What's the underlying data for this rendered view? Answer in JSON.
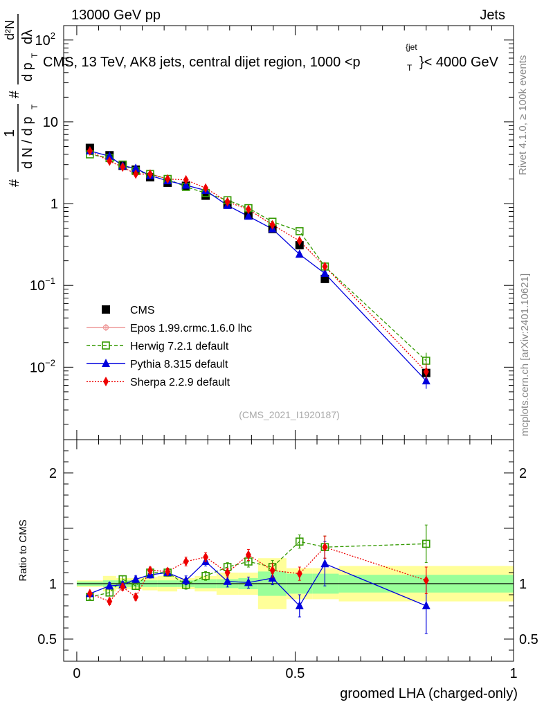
{
  "header": {
    "left": "13000 GeV pp",
    "right": "Jets"
  },
  "side_text": {
    "rivet": "Rivet 4.1.0, ≥ 100k events",
    "mcplots": "mcplots.cern.ch [arXiv:2401.10621]"
  },
  "chart_data": [
    {
      "id": "main",
      "type": "scatter",
      "title": "CMS, 13 TeV, AK8 jets, central dijet region, 1000 < p_T^{jet} < 4000 GeV",
      "title_parts": {
        "pre": "CMS, 13 TeV, AK8 jets, central dijet region, 1000 <p",
        "sub": "T",
        "sup": "{jet",
        "post": "}< 4000 GeV"
      },
      "ylabel_parts": {
        "hash1": "#",
        "one": "1",
        "denA": "d N / d p",
        "denA_sub": "T",
        "hash2": "#",
        "numB": "d²N",
        "denB": "d p",
        "denB_sub": "T",
        "denB2": "dλ"
      },
      "yscale": "log",
      "ylim": [
        0.0013,
        150
      ],
      "xlim": [
        -0.03,
        1.0
      ],
      "yticks": [
        {
          "value": 0.01,
          "base": "10",
          "exp": "−2"
        },
        {
          "value": 0.1,
          "base": "10",
          "exp": "−1"
        },
        {
          "value": 1,
          "base": "1",
          "exp": ""
        },
        {
          "value": 10,
          "base": "10",
          "exp": ""
        },
        {
          "value": 100,
          "base": "10",
          "exp": "2"
        }
      ],
      "watermark": "(CMS_2021_I1920187)",
      "x": [
        0.03,
        0.075,
        0.105,
        0.135,
        0.168,
        0.208,
        0.25,
        0.295,
        0.345,
        0.393,
        0.448,
        0.51,
        0.568,
        0.8
      ],
      "series": [
        {
          "name": "CMS",
          "marker": "square",
          "color": "#000000",
          "values": [
            4.8,
            3.9,
            2.9,
            2.6,
            2.1,
            1.8,
            1.65,
            1.25,
            0.97,
            0.72,
            0.49,
            0.31,
            0.12,
            0.0085
          ]
        },
        {
          "name": "Epos 1.99.crmc.1.6.0 lhc",
          "marker": "cross",
          "color": "#ee9999",
          "line": "solid",
          "values": []
        },
        {
          "name": "Herwig 7.2.1 default",
          "marker": "open-square",
          "color": "#339900",
          "line": "dashed",
          "values": [
            4.0,
            3.6,
            3.0,
            2.5,
            2.3,
            2.0,
            1.6,
            1.35,
            1.1,
            0.88,
            0.6,
            0.46,
            0.17,
            0.012
          ]
        },
        {
          "name": "Pythia 8.315 default",
          "marker": "triangle",
          "color": "#0000dd",
          "line": "solid",
          "values": [
            4.4,
            3.8,
            2.9,
            2.7,
            2.2,
            1.9,
            1.68,
            1.45,
            0.95,
            0.7,
            0.49,
            0.24,
            0.14,
            0.0068
          ]
        },
        {
          "name": "Sherpa 2.2.9 default",
          "marker": "diamond",
          "color": "#ee0000",
          "line": "dotted",
          "values": [
            4.4,
            3.3,
            2.8,
            2.3,
            2.3,
            2.0,
            1.95,
            1.55,
            1.05,
            0.85,
            0.55,
            0.35,
            0.17,
            0.0088
          ]
        }
      ]
    },
    {
      "id": "ratio",
      "type": "scatter",
      "ylabel": "Ratio to CMS",
      "yscale": "linear",
      "ylim": [
        0.3,
        2.3
      ],
      "xlim": [
        -0.03,
        1.0
      ],
      "xlabel": "groomed LHA (charged-only)",
      "yticks": [
        {
          "value": 0.5,
          "label": "0.5"
        },
        {
          "value": 1,
          "label": "1"
        },
        {
          "value": 2,
          "label": "2"
        }
      ],
      "xticks": [
        {
          "value": 0,
          "label": "0"
        },
        {
          "value": 0.5,
          "label": "0.5"
        },
        {
          "value": 1,
          "label": "1"
        }
      ],
      "bands": [
        {
          "x0": 0.0,
          "x1": 0.06,
          "stat_lo": 0.98,
          "stat_hi": 1.02,
          "tot_lo": 0.97,
          "tot_hi": 1.03
        },
        {
          "x0": 0.06,
          "x1": 0.09,
          "stat_lo": 0.97,
          "stat_hi": 1.03,
          "tot_lo": 0.93,
          "tot_hi": 1.07
        },
        {
          "x0": 0.09,
          "x1": 0.12,
          "stat_lo": 0.97,
          "stat_hi": 1.03,
          "tot_lo": 0.95,
          "tot_hi": 1.05
        },
        {
          "x0": 0.12,
          "x1": 0.15,
          "stat_lo": 0.97,
          "stat_hi": 1.03,
          "tot_lo": 0.95,
          "tot_hi": 1.05
        },
        {
          "x0": 0.15,
          "x1": 0.185,
          "stat_lo": 0.97,
          "stat_hi": 1.03,
          "tot_lo": 0.94,
          "tot_hi": 1.06
        },
        {
          "x0": 0.185,
          "x1": 0.23,
          "stat_lo": 0.97,
          "stat_hi": 1.03,
          "tot_lo": 0.93,
          "tot_hi": 1.07
        },
        {
          "x0": 0.23,
          "x1": 0.27,
          "stat_lo": 0.97,
          "stat_hi": 1.03,
          "tot_lo": 0.95,
          "tot_hi": 1.05
        },
        {
          "x0": 0.27,
          "x1": 0.32,
          "stat_lo": 0.96,
          "stat_hi": 1.04,
          "tot_lo": 0.93,
          "tot_hi": 1.07
        },
        {
          "x0": 0.32,
          "x1": 0.37,
          "stat_lo": 0.96,
          "stat_hi": 1.04,
          "tot_lo": 0.9,
          "tot_hi": 1.1
        },
        {
          "x0": 0.37,
          "x1": 0.415,
          "stat_lo": 0.95,
          "stat_hi": 1.05,
          "tot_lo": 0.9,
          "tot_hi": 1.1
        },
        {
          "x0": 0.415,
          "x1": 0.48,
          "stat_lo": 0.89,
          "stat_hi": 1.11,
          "tot_lo": 0.77,
          "tot_hi": 1.23
        },
        {
          "x0": 0.48,
          "x1": 0.54,
          "stat_lo": 0.91,
          "stat_hi": 1.09,
          "tot_lo": 0.86,
          "tot_hi": 1.14
        },
        {
          "x0": 0.54,
          "x1": 0.6,
          "stat_lo": 0.91,
          "stat_hi": 1.09,
          "tot_lo": 0.86,
          "tot_hi": 1.14
        },
        {
          "x0": 0.6,
          "x1": 1.0,
          "stat_lo": 0.92,
          "stat_hi": 1.08,
          "tot_lo": 0.84,
          "tot_hi": 1.16
        }
      ],
      "series": [
        {
          "name": "Herwig 7.2.1 default",
          "marker": "open-square",
          "color": "#339900",
          "line": "dashed",
          "values": [
            0.88,
            0.92,
            1.04,
            0.98,
            1.1,
            1.1,
            0.99,
            1.07,
            1.15,
            1.2,
            1.15,
            1.38,
            1.33,
            1.36
          ],
          "errors": [
            0.02,
            0.03,
            0.03,
            0.03,
            0.03,
            0.03,
            0.04,
            0.04,
            0.04,
            0.05,
            0.06,
            0.06,
            0.1,
            0.17
          ]
        },
        {
          "name": "Pythia 8.315 default",
          "marker": "triangle",
          "color": "#0000dd",
          "line": "solid",
          "values": [
            0.91,
            0.98,
            0.99,
            1.04,
            1.08,
            1.1,
            1.03,
            1.2,
            1.02,
            1.01,
            1.05,
            0.8,
            1.18,
            0.8
          ],
          "errors": [
            0.02,
            0.03,
            0.03,
            0.03,
            0.03,
            0.03,
            0.04,
            0.04,
            0.05,
            0.05,
            0.06,
            0.1,
            0.2,
            0.25
          ]
        },
        {
          "name": "Sherpa 2.2.9 default",
          "marker": "diamond",
          "color": "#ee0000",
          "line": "dotted",
          "values": [
            0.91,
            0.84,
            0.97,
            0.88,
            1.12,
            1.11,
            1.2,
            1.24,
            1.1,
            1.26,
            1.12,
            1.09,
            1.33,
            1.03
          ],
          "errors": [
            0.02,
            0.03,
            0.03,
            0.03,
            0.03,
            0.03,
            0.04,
            0.04,
            0.04,
            0.05,
            0.06,
            0.06,
            0.1,
            0.12
          ]
        }
      ]
    }
  ]
}
